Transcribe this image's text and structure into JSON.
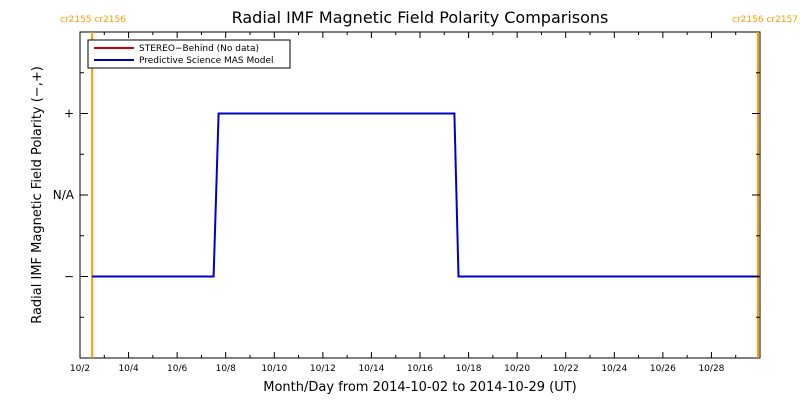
{
  "chart_data": {
    "type": "line",
    "title": "Radial IMF Magnetic Field Polarity Comparisons",
    "xlabel": "Month/Day from 2014-10-02 to 2014-10-29 (UT)",
    "ylabel": "Radial IMF Magnetic Field Polarity (−,+)",
    "xlim": [
      "2014-10-02",
      "2014-10-29"
    ],
    "x_ticks": [
      "10/2",
      "10/4",
      "10/6",
      "10/8",
      "10/10",
      "10/12",
      "10/14",
      "10/16",
      "10/18",
      "10/20",
      "10/22",
      "10/24",
      "10/26",
      "10/28"
    ],
    "y_ticks": [
      {
        "label": "+",
        "value": 1
      },
      {
        "label": "N/A",
        "value": 0
      },
      {
        "label": "−",
        "value": -1
      }
    ],
    "ylim": [
      -2,
      2
    ],
    "grid": false,
    "legend_placement": "top-left",
    "series": [
      {
        "name": "STEREO−Behind (No data)",
        "color": "#cc0000",
        "points": []
      },
      {
        "name": "Predictive Science MAS Model",
        "color": "#0000cc",
        "points": [
          {
            "x": "2014-10-02T12:00",
            "y": -1
          },
          {
            "x": "2014-10-07T12:00",
            "y": -1
          },
          {
            "x": "2014-10-07T17:00",
            "y": 1
          },
          {
            "x": "2014-10-17T10:00",
            "y": 1
          },
          {
            "x": "2014-10-17T14:00",
            "y": -1
          },
          {
            "x": "2014-10-29T23:00",
            "y": -1
          }
        ]
      }
    ],
    "carrington_markers": [
      {
        "x": "2014-10-02T12:00",
        "labels": [
          "cr2155",
          "cr2156"
        ],
        "color": "#ff9900"
      },
      {
        "x": "2014-10-29T22:00",
        "labels": [
          "cr2156",
          "cr2157"
        ],
        "color": "#ff9900"
      }
    ]
  }
}
